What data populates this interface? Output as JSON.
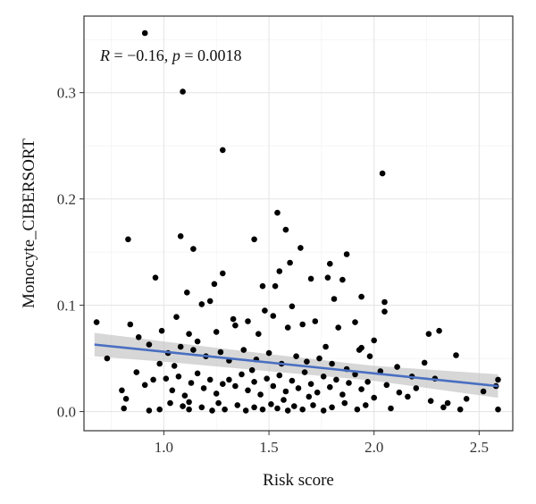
{
  "chart_data": {
    "type": "scatter",
    "xlabel": "Risk score",
    "ylabel": "Monocyte_CIBERSORT",
    "xlim": [
      0.62,
      2.66
    ],
    "ylim": [
      -0.018,
      0.372
    ],
    "x_ticks": [
      {
        "value": 1.0,
        "label": "1.0"
      },
      {
        "value": 1.5,
        "label": "1.5"
      },
      {
        "value": 2.0,
        "label": "2.0"
      },
      {
        "value": 2.5,
        "label": "2.5"
      }
    ],
    "y_ticks": [
      {
        "value": 0.0,
        "label": "0.0"
      },
      {
        "value": 0.1,
        "label": "0.1"
      },
      {
        "value": 0.2,
        "label": "0.2"
      },
      {
        "value": 0.3,
        "label": "0.3"
      }
    ],
    "annotation": {
      "r_label": "R",
      "r_text": " = −0.16, ",
      "p_label": "p",
      "p_text": " = 0.0018"
    },
    "grid": true,
    "regression": {
      "x": [
        0.67,
        2.59
      ],
      "y": [
        0.063,
        0.024
      ],
      "color": "#4a6fc1",
      "ci_band": {
        "x": [
          0.67,
          1.0,
          1.5,
          2.0,
          2.59
        ],
        "lower": [
          0.052,
          0.047,
          0.038,
          0.029,
          0.013
        ],
        "upper": [
          0.074,
          0.066,
          0.054,
          0.043,
          0.035
        ],
        "color": "#bdbdbd"
      }
    },
    "points": [
      [
        0.91,
        0.356
      ],
      [
        1.09,
        0.301
      ],
      [
        1.28,
        0.246
      ],
      [
        2.04,
        0.224
      ],
      [
        1.54,
        0.187
      ],
      [
        1.58,
        0.171
      ],
      [
        1.08,
        0.165
      ],
      [
        0.83,
        0.162
      ],
      [
        1.43,
        0.162
      ],
      [
        1.14,
        0.153
      ],
      [
        1.65,
        0.154
      ],
      [
        1.87,
        0.148
      ],
      [
        1.6,
        0.14
      ],
      [
        1.79,
        0.139
      ],
      [
        1.94,
        0.108
      ],
      [
        1.55,
        0.132
      ],
      [
        1.28,
        0.13
      ],
      [
        0.96,
        0.126
      ],
      [
        1.24,
        0.12
      ],
      [
        1.47,
        0.118
      ],
      [
        1.7,
        0.125
      ],
      [
        1.85,
        0.124
      ],
      [
        1.11,
        0.112
      ],
      [
        1.53,
        0.118
      ],
      [
        1.78,
        0.126
      ],
      [
        1.18,
        0.101
      ],
      [
        1.33,
        0.087
      ],
      [
        1.48,
        0.095
      ],
      [
        1.22,
        0.104
      ],
      [
        1.61,
        0.099
      ],
      [
        1.81,
        0.106
      ],
      [
        2.05,
        0.103
      ],
      [
        2.05,
        0.094
      ],
      [
        0.68,
        0.084
      ],
      [
        0.84,
        0.082
      ],
      [
        0.99,
        0.076
      ],
      [
        1.06,
        0.089
      ],
      [
        1.12,
        0.073
      ],
      [
        1.16,
        0.066
      ],
      [
        1.25,
        0.075
      ],
      [
        1.34,
        0.081
      ],
      [
        1.4,
        0.085
      ],
      [
        1.45,
        0.073
      ],
      [
        1.52,
        0.09
      ],
      [
        1.59,
        0.079
      ],
      [
        1.66,
        0.082
      ],
      [
        1.72,
        0.085
      ],
      [
        1.83,
        0.079
      ],
      [
        1.91,
        0.084
      ],
      [
        2.0,
        0.067
      ],
      [
        2.26,
        0.073
      ],
      [
        2.31,
        0.076
      ],
      [
        2.39,
        0.053
      ],
      [
        0.88,
        0.07
      ],
      [
        0.93,
        0.063
      ],
      [
        1.02,
        0.055
      ],
      [
        1.08,
        0.061
      ],
      [
        1.14,
        0.058
      ],
      [
        1.2,
        0.052
      ],
      [
        1.27,
        0.056
      ],
      [
        1.31,
        0.048
      ],
      [
        1.38,
        0.058
      ],
      [
        1.44,
        0.049
      ],
      [
        1.5,
        0.055
      ],
      [
        1.56,
        0.045
      ],
      [
        1.63,
        0.052
      ],
      [
        1.68,
        0.047
      ],
      [
        1.74,
        0.05
      ],
      [
        1.8,
        0.045
      ],
      [
        1.87,
        0.04
      ],
      [
        1.93,
        0.058
      ],
      [
        1.98,
        0.052
      ],
      [
        2.03,
        0.038
      ],
      [
        2.11,
        0.042
      ],
      [
        2.18,
        0.033
      ],
      [
        2.24,
        0.046
      ],
      [
        2.29,
        0.031
      ],
      [
        0.8,
        0.02
      ],
      [
        0.82,
        0.012
      ],
      [
        0.87,
        0.037
      ],
      [
        0.91,
        0.025
      ],
      [
        0.95,
        0.03
      ],
      [
        0.98,
        0.045
      ],
      [
        1.01,
        0.031
      ],
      [
        1.04,
        0.02
      ],
      [
        1.07,
        0.033
      ],
      [
        1.1,
        0.015
      ],
      [
        1.13,
        0.027
      ],
      [
        1.16,
        0.036
      ],
      [
        1.19,
        0.022
      ],
      [
        1.22,
        0.03
      ],
      [
        1.25,
        0.017
      ],
      [
        1.28,
        0.026
      ],
      [
        1.31,
        0.03
      ],
      [
        1.34,
        0.024
      ],
      [
        1.37,
        0.035
      ],
      [
        1.4,
        0.02
      ],
      [
        1.43,
        0.028
      ],
      [
        1.46,
        0.016
      ],
      [
        1.49,
        0.031
      ],
      [
        1.52,
        0.024
      ],
      [
        1.55,
        0.034
      ],
      [
        1.58,
        0.019
      ],
      [
        1.61,
        0.029
      ],
      [
        1.64,
        0.022
      ],
      [
        1.67,
        0.037
      ],
      [
        1.7,
        0.026
      ],
      [
        1.73,
        0.018
      ],
      [
        1.76,
        0.033
      ],
      [
        1.79,
        0.023
      ],
      [
        1.82,
        0.03
      ],
      [
        1.85,
        0.016
      ],
      [
        1.88,
        0.027
      ],
      [
        1.91,
        0.035
      ],
      [
        1.94,
        0.021
      ],
      [
        1.97,
        0.028
      ],
      [
        2.0,
        0.013
      ],
      [
        2.06,
        0.025
      ],
      [
        2.12,
        0.018
      ],
      [
        2.2,
        0.022
      ],
      [
        2.27,
        0.01
      ],
      [
        2.35,
        0.008
      ],
      [
        2.44,
        0.012
      ],
      [
        2.52,
        0.019
      ],
      [
        2.59,
        0.03
      ],
      [
        2.58,
        0.024
      ],
      [
        2.59,
        0.002
      ],
      [
        2.41,
        0.002
      ],
      [
        2.33,
        0.004
      ],
      [
        0.81,
        0.003
      ],
      [
        0.93,
        0.001
      ],
      [
        0.98,
        0.002
      ],
      [
        1.03,
        0.008
      ],
      [
        1.09,
        0.005
      ],
      [
        1.12,
        0.002
      ],
      [
        1.18,
        0.004
      ],
      [
        1.23,
        0.001
      ],
      [
        1.26,
        0.008
      ],
      [
        1.29,
        0.002
      ],
      [
        1.35,
        0.006
      ],
      [
        1.39,
        0.001
      ],
      [
        1.43,
        0.004
      ],
      [
        1.47,
        0.002
      ],
      [
        1.51,
        0.007
      ],
      [
        1.54,
        0.003
      ],
      [
        1.59,
        0.001
      ],
      [
        1.62,
        0.005
      ],
      [
        1.66,
        0.002
      ],
      [
        1.71,
        0.006
      ],
      [
        1.76,
        0.001
      ],
      [
        1.8,
        0.004
      ],
      [
        1.86,
        0.008
      ],
      [
        1.92,
        0.002
      ],
      [
        1.96,
        0.006
      ],
      [
        2.08,
        0.003
      ],
      [
        0.73,
        0.05
      ],
      [
        1.05,
        0.043
      ],
      [
        1.42,
        0.039
      ],
      [
        1.77,
        0.061
      ],
      [
        2.16,
        0.014
      ],
      [
        1.12,
        0.009
      ],
      [
        1.57,
        0.011
      ],
      [
        1.69,
        0.014
      ],
      [
        1.94,
        0.06
      ]
    ]
  }
}
